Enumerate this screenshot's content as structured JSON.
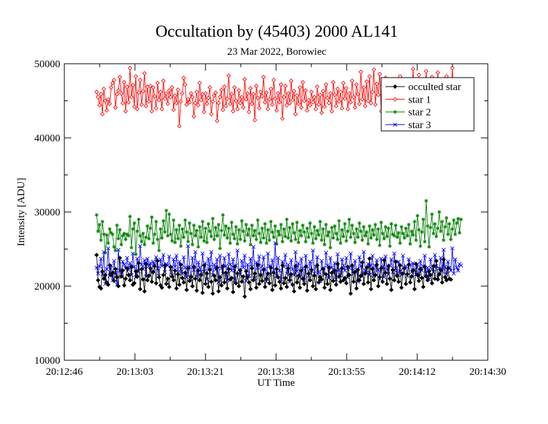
{
  "chart_data": {
    "type": "line",
    "title": "Occultation by (45403) 2000 AL141",
    "subtitle": "23 Mar 2022, Borowiec",
    "xlabel": "UT Time",
    "ylabel": "Intensity [ADU]",
    "ylim": [
      10000,
      50000
    ],
    "xlim_seconds": [
      0,
      105
    ],
    "x_tick_labels": [
      "20:12:46",
      "20:13:03",
      "20:13:21",
      "20:13:38",
      "20:13:55",
      "20:14:12",
      "20:14:30"
    ],
    "y_ticks": [
      10000,
      20000,
      30000,
      40000,
      50000
    ],
    "x_start_seconds": 8.0,
    "x_step_seconds": 0.36,
    "legend_position": "top-right",
    "grid": false,
    "series": [
      {
        "name": "occulted star",
        "color": "#000000",
        "marker": "diamond-filled",
        "values": [
          24200,
          20800,
          19900,
          19700,
          22000,
          21000,
          21500,
          20500,
          20200,
          22800,
          21500,
          21800,
          20700,
          22300,
          21200,
          20000,
          23800,
          21300,
          22100,
          20100,
          21000,
          22400,
          21500,
          20800,
          22600,
          20200,
          20400,
          22000,
          21300,
          23100,
          19600,
          22300,
          20900,
          19300,
          23000,
          20800,
          21400,
          22400,
          20600,
          21900,
          22700,
          20400,
          23400,
          21200,
          20100,
          19800,
          21500,
          22800,
          20300,
          21000,
          19900,
          22600,
          21300,
          20800,
          22100,
          19700,
          21600,
          20200,
          22900,
          21100,
          20500,
          21800,
          19500,
          22400,
          20700,
          21300,
          20000,
          22600,
          21000,
          19400,
          22100,
          20800,
          21500,
          19100,
          22800,
          20300,
          21700,
          19900,
          22200,
          20600,
          19000,
          21400,
          20800,
          22500,
          19300,
          21200,
          20100,
          22700,
          20500,
          21800,
          19700,
          22300,
          20900,
          21100,
          19200,
          22600,
          20400,
          21700,
          20000,
          22100,
          20600,
          21300,
          18600,
          22000,
          21200,
          20500,
          19600,
          22400,
          20800,
          21700,
          19800,
          22900,
          20300,
          21500,
          20700,
          22200,
          19900,
          21000,
          21700,
          20400,
          22500,
          19500,
          21800,
          20100,
          22300,
          21200,
          20600,
          19700,
          22800,
          20400,
          21100,
          19900,
          22400,
          20800,
          21600,
          20200,
          19300,
          22700,
          20500,
          21400,
          19800,
          22100,
          21000,
          20300,
          22600,
          19400,
          21700,
          20800,
          22200,
          20000,
          21400,
          19600,
          22800,
          20500,
          21200,
          20900,
          22300,
          19800,
          21600,
          20300,
          22500,
          19500,
          21800,
          20700,
          22100,
          20200,
          23000,
          21300,
          20600,
          22400,
          20800,
          21100,
          20400,
          22600,
          21500,
          19000,
          22800,
          20600,
          21900,
          19700,
          22200,
          20800,
          21400,
          23200,
          20300,
          21700,
          22500,
          20500,
          23700,
          19600,
          22300,
          20800,
          21500,
          22900,
          20000,
          21200,
          22400,
          20600,
          23500,
          21800,
          20300,
          22700,
          21000,
          19500,
          22200,
          20800,
          23300,
          21400,
          20600,
          22800,
          19800,
          21700,
          22400,
          20300,
          21600,
          22900,
          20500,
          21300,
          22100,
          19600,
          23000,
          21500,
          20700,
          22300,
          21100,
          19900,
          22600,
          21300,
          20800,
          22000,
          21500,
          20400,
          22700,
          21000,
          23400,
          20900,
          21600,
          22200,
          20500,
          23600,
          21200,
          20800,
          22400,
          21000,
          20900
        ]
      },
      {
        "name": "star 1",
        "color": "#ff0000",
        "marker": "diamond-open",
        "values": [
          46200,
          45500,
          44400,
          45900,
          43200,
          46600,
          45000,
          43700,
          45200,
          44600,
          46800,
          47400,
          47800,
          44100,
          45900,
          46400,
          48200,
          46000,
          44700,
          47500,
          43600,
          46900,
          44800,
          49400,
          45500,
          47100,
          44200,
          48300,
          43900,
          46100,
          47800,
          44500,
          46300,
          48700,
          44300,
          46900,
          44900,
          47000,
          43600,
          46800,
          45600,
          44000,
          47400,
          45100,
          46200,
          43900,
          47700,
          45300,
          46000,
          44600,
          46400,
          45500,
          46800,
          43800,
          45700,
          44700,
          46500,
          41600,
          44900,
          46000,
          48100,
          47200,
          44500,
          45200,
          44800,
          46000,
          45500,
          42900,
          44700,
          46200,
          44400,
          47400,
          45100,
          45900,
          43500,
          46000,
          44600,
          45400,
          46800,
          43200,
          44900,
          45700,
          46100,
          42300,
          44700,
          45500,
          46500,
          43800,
          46900,
          44300,
          45300,
          48400,
          44600,
          45900,
          43600,
          46800,
          45000,
          43900,
          46400,
          44700,
          45500,
          44100,
          47900,
          45200,
          46000,
          43500,
          46700,
          44600,
          45900,
          42400,
          47000,
          45400,
          44000,
          46200,
          45600,
          48200,
          44800,
          46100,
          43900,
          45200,
          46600,
          44500,
          47800,
          45300,
          43700,
          46000,
          44800,
          47200,
          42600,
          45500,
          47000,
          44400,
          46000,
          44700,
          47700,
          45100,
          46300,
          43200,
          45700,
          44600,
          46800,
          44100,
          47500,
          45000,
          46400,
          43700,
          45100,
          44400,
          46200,
          44800,
          45500,
          43900,
          46900,
          44500,
          45800,
          43400,
          46300,
          44200,
          47200,
          45400,
          44700,
          46000,
          43600,
          47500,
          45800,
          44300,
          46600,
          44900,
          46200,
          44000,
          47400,
          45300,
          46700,
          43900,
          46000,
          44800,
          47700,
          45500,
          44100,
          47200,
          45900,
          44600,
          48900,
          45200,
          46800,
          44300,
          47600,
          45000,
          48300,
          44700,
          46200,
          49200,
          44500,
          47300,
          45800,
          48600,
          43600,
          47100,
          44900,
          48100,
          45400,
          42900,
          46700,
          44800,
          47900,
          45200,
          43400,
          47500,
          44600,
          48300,
          45700,
          46400,
          43200,
          47100,
          45500,
          44800,
          47900,
          43900,
          49300,
          45000,
          46600,
          44200,
          48500,
          45800,
          43500,
          47800,
          44900,
          49000,
          45400,
          46700,
          43900,
          48200,
          45100,
          47300,
          44400,
          48800,
          45700,
          43100,
          47600,
          44900,
          46200,
          48300,
          44500,
          47500,
          45300,
          49400,
          45600,
          45900
        ]
      },
      {
        "name": "star 2",
        "color": "#008000",
        "marker": "asterisk",
        "values": [
          29600,
          27400,
          28300,
          26200,
          28700,
          27000,
          24500,
          26900,
          25800,
          27700,
          27200,
          27000,
          25300,
          24800,
          28200,
          26400,
          27600,
          25600,
          26800,
          27100,
          26300,
          27000,
          26800,
          29400,
          25200,
          27700,
          28500,
          24300,
          27400,
          29000,
          26800,
          26000,
          27100,
          25600,
          26600,
          28100,
          26400,
          27800,
          29300,
          25800,
          27000,
          28700,
          26300,
          24800,
          27700,
          26500,
          28800,
          27300,
          30200,
          26800,
          29700,
          27000,
          26100,
          28900,
          25900,
          27600,
          26400,
          28200,
          25400,
          27700,
          26600,
          28900,
          27300,
          26000,
          28500,
          27100,
          25600,
          28200,
          26800,
          27500,
          25300,
          28000,
          26600,
          28700,
          26100,
          27800,
          25900,
          28400,
          27400,
          26700,
          29100,
          26300,
          27900,
          26800,
          28300,
          25100,
          27500,
          29600,
          26900,
          28100,
          26500,
          27800,
          25800,
          28600,
          27000,
          26400,
          28000,
          25700,
          27600,
          26300,
          28800,
          27400,
          26100,
          28300,
          26900,
          27700,
          25600,
          28200,
          26800,
          27500,
          26300,
          28900,
          27100,
          25900,
          27800,
          26500,
          28400,
          25800,
          27600,
          26200,
          28700,
          27300,
          26600,
          28100,
          25700,
          27400,
          26900,
          28300,
          26000,
          27700,
          26700,
          29000,
          26500,
          27900,
          26100,
          28400,
          27200,
          26300,
          28600,
          25900,
          27500,
          26800,
          28200,
          27300,
          26000,
          27800,
          26600,
          28500,
          27100,
          25800,
          28000,
          26400,
          27500,
          26900,
          28700,
          26200,
          27700,
          25600,
          28300,
          26800,
          27300,
          25200,
          27900,
          26500,
          28100,
          27100,
          26300,
          28800,
          25800,
          27600,
          26700,
          28400,
          26100,
          27400,
          29000,
          26600,
          28200,
          27100,
          25900,
          27700,
          26600,
          28500,
          27400,
          26200,
          28000,
          26800,
          27300,
          25700,
          28100,
          26500,
          27600,
          26900,
          28300,
          26300,
          27700,
          25500,
          28600,
          27100,
          26400,
          28000,
          26700,
          27800,
          25400,
          28400,
          27000,
          26800,
          28200,
          26600,
          27200,
          25800,
          28000,
          27100,
          26500,
          27800,
          26800,
          28300,
          25700,
          27400,
          26900,
          28700,
          26200,
          29500,
          27600,
          25400,
          27300,
          29000,
          26000,
          31500,
          28100,
          25300,
          27900,
          29700,
          27100,
          28400,
          26700,
          27800,
          30000,
          27400,
          28700,
          26200,
          28000,
          29200,
          27000,
          28400,
          26300,
          27700,
          28900,
          27000,
          28500,
          29100,
          27200,
          29000
        ]
      },
      {
        "name": "star 3",
        "color": "#0000ff",
        "marker": "cross",
        "values": [
          22500,
          21700,
          22700,
          23700,
          21600,
          24600,
          20300,
          22300,
          25100,
          21400,
          22800,
          20800,
          23400,
          21800,
          20200,
          24900,
          22100,
          21300,
          23300,
          22900,
          22400,
          23800,
          22200,
          23100,
          21500,
          24400,
          22600,
          21200,
          23700,
          22000,
          25400,
          22900,
          22300,
          23500,
          21300,
          23700,
          22700,
          23100,
          21800,
          23300,
          22800,
          23900,
          22400,
          21400,
          23600,
          22700,
          24200,
          21900,
          23000,
          22800,
          24000,
          22300,
          21500,
          23600,
          22600,
          24100,
          21800,
          23300,
          22300,
          21700,
          23900,
          22500,
          21200,
          25400,
          22600,
          21000,
          23800,
          22200,
          24600,
          21300,
          23200,
          22500,
          21900,
          24400,
          22000,
          23100,
          20900,
          23700,
          22600,
          24600,
          21500,
          22900,
          22200,
          23600,
          20500,
          24100,
          22400,
          21700,
          23800,
          22700,
          20800,
          24300,
          22900,
          22100,
          23600,
          20400,
          22800,
          24800,
          22200,
          21600,
          23400,
          22500,
          24100,
          20700,
          22900,
          21400,
          23700,
          22600,
          25300,
          21100,
          23200,
          22500,
          24000,
          21500,
          22700,
          23900,
          22300,
          20600,
          24400,
          22700,
          21600,
          23500,
          22200,
          25800,
          21400,
          23800,
          22100,
          20900,
          23300,
          22600,
          24200,
          21700,
          22900,
          20600,
          23500,
          22300,
          21500,
          24600,
          22000,
          23100,
          21200,
          23700,
          22400,
          20800,
          24100,
          22700,
          21400,
          23300,
          22100,
          24800,
          21700,
          22600,
          23900,
          21900,
          20700,
          23400,
          22400,
          21600,
          24500,
          22800,
          21100,
          23800,
          22500,
          21800,
          23100,
          20900,
          24300,
          22200,
          21500,
          23600,
          22800,
          22100,
          23800,
          21200,
          22500,
          24400,
          22400,
          21700,
          23400,
          22200,
          20600,
          23900,
          22700,
          21300,
          24600,
          22100,
          21800,
          23000,
          21500,
          22800,
          24100,
          21400,
          22700,
          23500,
          22200,
          21000,
          23700,
          22600,
          21200,
          24000,
          22300,
          21600,
          22800,
          23600,
          21900,
          24400,
          22400,
          21800,
          23300,
          22000,
          21500,
          24100,
          22500,
          22700,
          21400,
          23600,
          22900,
          21900,
          23100,
          22200,
          21600,
          22900,
          21300,
          23400,
          22100,
          22700,
          24100,
          21700,
          22500,
          20900,
          23600,
          22300,
          21900,
          24200,
          22700,
          21200,
          22400,
          23800,
          22000,
          24900,
          22600,
          21600,
          23300,
          22500,
          22100,
          25100,
          21700,
          23600,
          22500,
          22100,
          23000,
          22800
        ]
      }
    ]
  }
}
